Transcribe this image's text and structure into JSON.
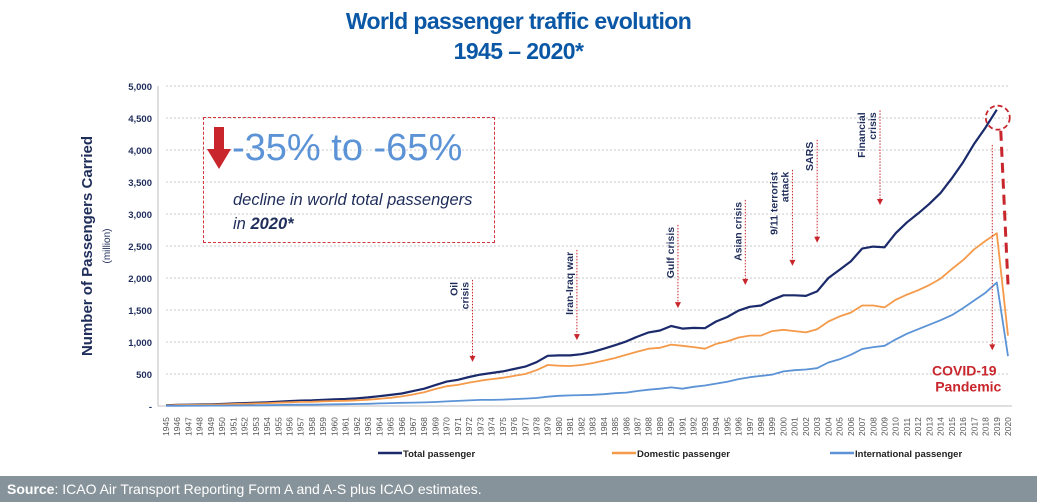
{
  "title_line1": "World passenger traffic evolution",
  "title_line2": "1945 – 2020*",
  "callout": {
    "headline": "-35% to -65%",
    "text_line1": "decline in world total passengers",
    "text_line2_prefix": "in ",
    "text_line2_bold": "2020*",
    "arrow_icon": "down-arrow"
  },
  "source": {
    "label": "Source",
    "text": ": ICAO Air Transport Reporting Form A and A-S plus ICAO estimates."
  },
  "colors": {
    "total": "#1b2a6b",
    "domestic": "#f59a4a",
    "international": "#5b93d6",
    "annotation": "#c8262c",
    "title": "#0a57a6"
  },
  "chart_data": {
    "type": "line",
    "title": "World passenger traffic evolution 1945 – 2020*",
    "ylabel": "Number of Passengers Carried",
    "ylabel_unit": "(million)",
    "xlabel": "",
    "ylim": [
      0,
      5000
    ],
    "yticks": [
      0,
      500,
      1000,
      1500,
      2000,
      2500,
      3000,
      3500,
      4000,
      4500,
      5000
    ],
    "ytick_labels": [
      "-",
      "500",
      "1,000",
      "1,500",
      "2,000",
      "2,500",
      "3,000",
      "3,500",
      "4,000",
      "4,500",
      "5,000"
    ],
    "grid": true,
    "legend_position": "bottom",
    "x_start": 1945,
    "x_end": 2020,
    "series": [
      {
        "name": "Total passenger",
        "key": "total",
        "values": [
          9,
          18,
          21,
          24,
          27,
          31,
          39,
          45,
          51,
          58,
          67,
          76,
          84,
          87,
          97,
          105,
          110,
          120,
          134,
          153,
          174,
          195,
          233,
          271,
          327,
          382,
          410,
          453,
          490,
          515,
          540,
          578,
          616,
          685,
          785,
          790,
          790,
          810,
          845,
          895,
          950,
          1010,
          1085,
          1150,
          1180,
          1250,
          1210,
          1220,
          1215,
          1320,
          1390,
          1490,
          1550,
          1570,
          1660,
          1730,
          1730,
          1720,
          1790,
          2000,
          2130,
          2260,
          2460,
          2490,
          2480,
          2700,
          2870,
          3010,
          3160,
          3330,
          3560,
          3810,
          4100,
          4350,
          4630,
          null
        ]
      },
      {
        "name": "Domestic passenger",
        "key": "domestic",
        "values": [
          7,
          15,
          17,
          19,
          21,
          25,
          31,
          35,
          40,
          45,
          52,
          58,
          64,
          66,
          73,
          78,
          82,
          89,
          99,
          113,
          128,
          150,
          180,
          215,
          265,
          310,
          330,
          365,
          395,
          420,
          440,
          470,
          500,
          560,
          640,
          630,
          625,
          640,
          670,
          710,
          750,
          800,
          850,
          895,
          910,
          960,
          940,
          920,
          895,
          970,
          1010,
          1070,
          1100,
          1100,
          1170,
          1190,
          1170,
          1150,
          1200,
          1320,
          1400,
          1460,
          1570,
          1570,
          1540,
          1660,
          1740,
          1810,
          1890,
          1990,
          2140,
          2280,
          2450,
          2580,
          2700,
          1100
        ]
      },
      {
        "name": "International passenger",
        "key": "international",
        "values": [
          2,
          3,
          4,
          5,
          6,
          6,
          8,
          10,
          11,
          13,
          15,
          18,
          20,
          21,
          24,
          27,
          28,
          31,
          35,
          40,
          46,
          50,
          53,
          56,
          62,
          72,
          80,
          88,
          95,
          95,
          100,
          108,
          116,
          125,
          145,
          160,
          165,
          170,
          175,
          185,
          200,
          210,
          235,
          255,
          270,
          290,
          270,
          300,
          320,
          350,
          380,
          420,
          450,
          470,
          490,
          540,
          560,
          570,
          590,
          680,
          730,
          800,
          890,
          920,
          940,
          1040,
          1130,
          1200,
          1270,
          1340,
          1420,
          1530,
          1650,
          1770,
          1930,
          780
        ]
      }
    ],
    "total_2020_drop_to": 1900,
    "annotations": [
      {
        "lines": [
          "Oil",
          "crisis"
        ],
        "year": 1972.3,
        "from": 1970,
        "to": 690
      },
      {
        "lines": [
          "Iran-Iraq war"
        ],
        "year": 1981.6,
        "from": 2440,
        "to": 1030
      },
      {
        "lines": [
          "Gulf crisis"
        ],
        "year": 1990.6,
        "from": 2830,
        "to": 1530
      },
      {
        "lines": [
          "Asian crisis"
        ],
        "year": 1996.6,
        "from": 3220,
        "to": 1890
      },
      {
        "lines": [
          "9/11 terrorist",
          "attack"
        ],
        "year": 2000.8,
        "from": 3690,
        "to": 2190
      },
      {
        "lines": [
          "SARS"
        ],
        "year": 2003.0,
        "from": 4160,
        "to": 2550
      },
      {
        "lines": [
          "Financial",
          "crisis"
        ],
        "year": 2008.6,
        "from": 4620,
        "to": 3140
      },
      {
        "lines": [
          "COVID-19",
          "Pandemic"
        ],
        "year": 2018.6,
        "from": 4080,
        "to": 870,
        "horizontal": true
      }
    ]
  }
}
